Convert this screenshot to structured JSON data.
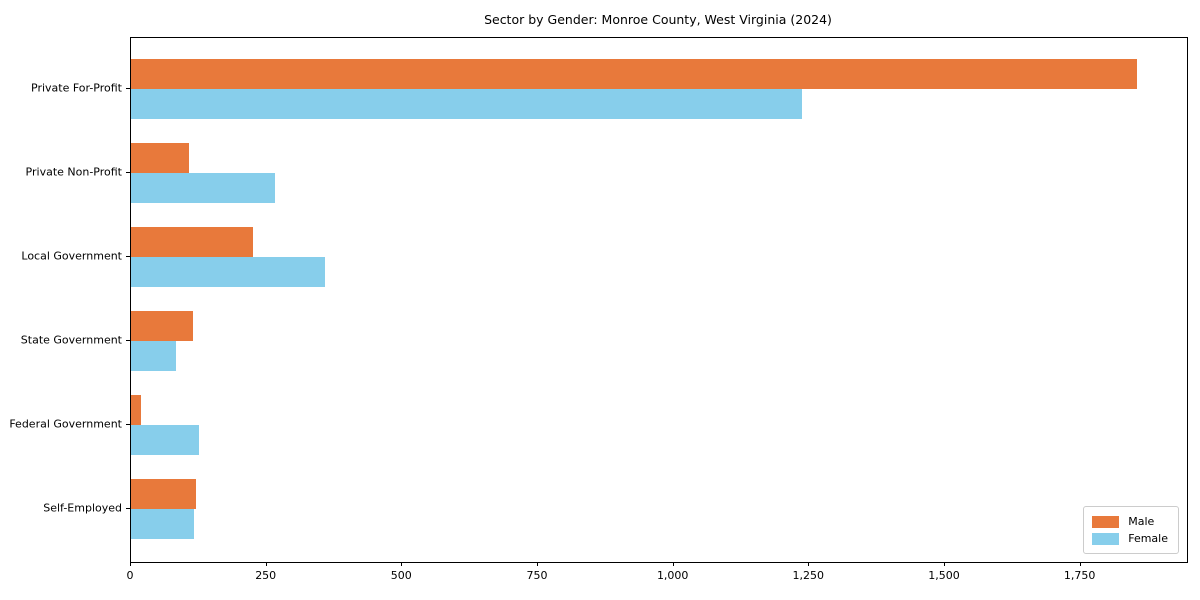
{
  "chart_data": {
    "type": "bar",
    "orientation": "horizontal",
    "title": "Sector by Gender: Monroe County, West Virginia (2024)",
    "xlabel": "",
    "ylabel": "",
    "categories": [
      "Private For-Profit",
      "Private Non-Profit",
      "Local Government",
      "State Government",
      "Federal Government",
      "Self-Employed"
    ],
    "series": [
      {
        "name": "Male",
        "color": "#e8793b",
        "values": [
          1853,
          106,
          224,
          114,
          18,
          120
        ]
      },
      {
        "name": "Female",
        "color": "#87ceeb",
        "values": [
          1236,
          266,
          357,
          82,
          125,
          116
        ]
      }
    ],
    "xlim": [
      0,
      1946
    ],
    "xticks": [
      0,
      250,
      500,
      750,
      1000,
      1250,
      1500,
      1750
    ],
    "xtick_labels": [
      "0",
      "250",
      "500",
      "750",
      "1,000",
      "1,250",
      "1,500",
      "1,750"
    ],
    "grid": false,
    "legend_position": "lower right"
  }
}
